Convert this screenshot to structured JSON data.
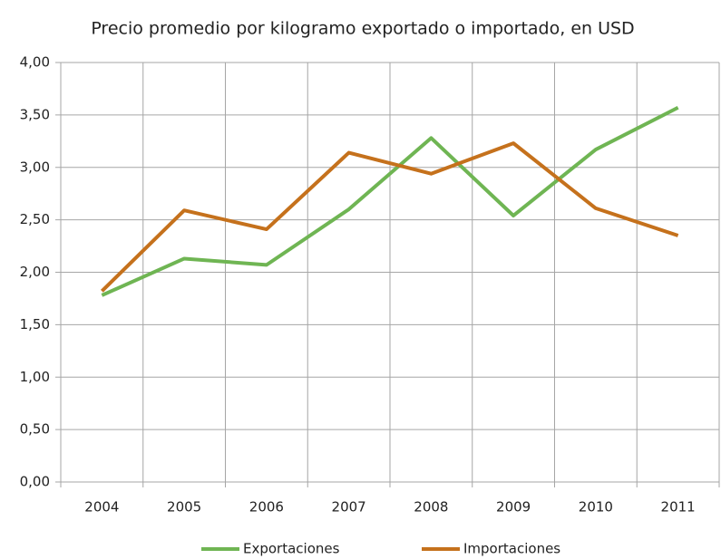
{
  "chart_data": {
    "type": "line",
    "title": "Precio promedio por kilogramo exportado o importado, en USD",
    "categories": [
      "2004",
      "2005",
      "2006",
      "2007",
      "2008",
      "2009",
      "2010",
      "2011"
    ],
    "series": [
      {
        "name": "Exportaciones",
        "color": "#6fb553",
        "values": [
          1.78,
          2.13,
          2.07,
          2.6,
          3.28,
          2.54,
          3.17,
          3.57
        ]
      },
      {
        "name": "Importaciones",
        "color": "#c5711c",
        "values": [
          1.82,
          2.59,
          2.41,
          3.14,
          2.94,
          3.23,
          2.61,
          2.35
        ]
      }
    ],
    "ylim": [
      0,
      4
    ],
    "yticks": [
      {
        "value": 0,
        "label": "0,00"
      },
      {
        "value": 0.5,
        "label": "0,50"
      },
      {
        "value": 1,
        "label": "1,00"
      },
      {
        "value": 1.5,
        "label": "1,50"
      },
      {
        "value": 2,
        "label": "2,00"
      },
      {
        "value": 2.5,
        "label": "2,50"
      },
      {
        "value": 3,
        "label": "3,00"
      },
      {
        "value": 3.5,
        "label": "3,50"
      },
      {
        "value": 4,
        "label": "4,00"
      }
    ],
    "grid": true,
    "legend": "bottom"
  }
}
